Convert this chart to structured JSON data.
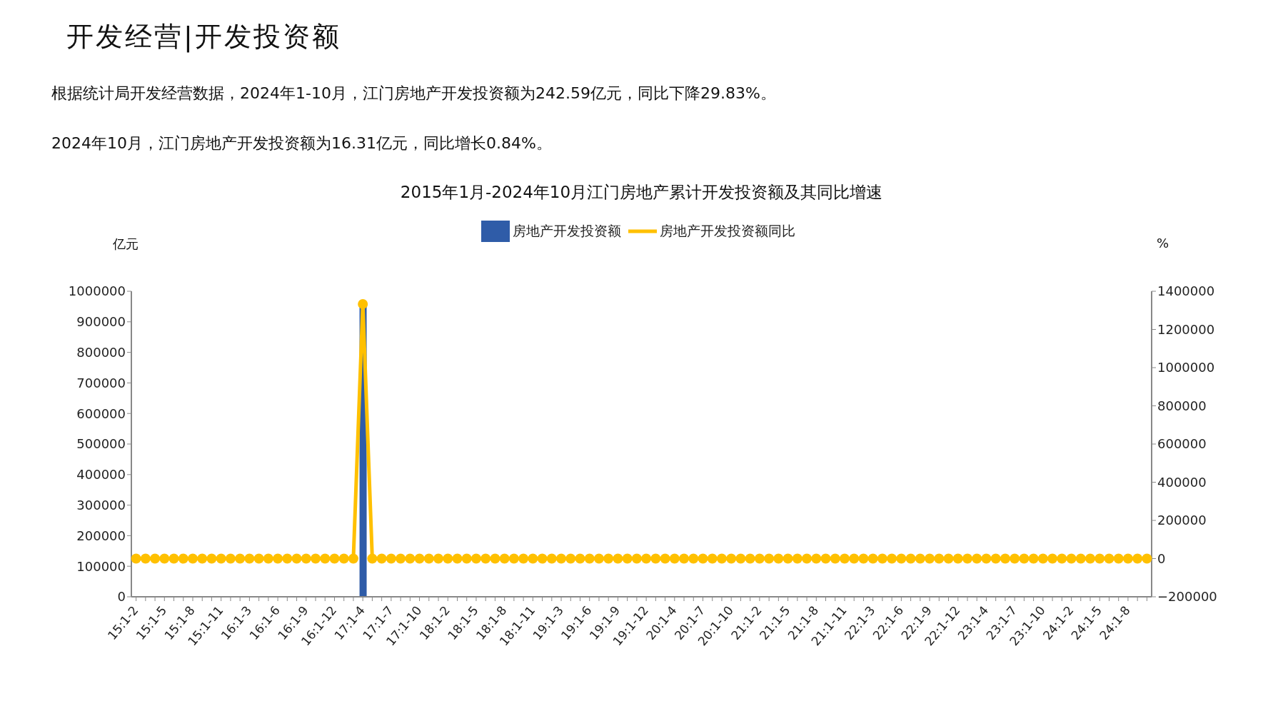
{
  "chart_data": {
    "type": "bar",
    "title": "开发经营|开发投资额",
    "subtitle": "2015年1月-2024年10月江门房地产累计开发投资额及其同比增速",
    "annotations": [
      "根据统计局开发经营数据，2024年1-10月，江门房地产开发投资额为242.59亿元，同比下降29.83%。",
      "2024年10月，江门房地产开发投资额为16.31亿元，同比增长0.84%。"
    ],
    "ylabel": "亿元",
    "y2label": "%",
    "categories": [
      "15:1-2",
      null,
      null,
      "15:1-5",
      null,
      null,
      "15:1-8",
      null,
      null,
      "15:1-11",
      null,
      null,
      "16:1-3",
      null,
      null,
      "16:1-6",
      null,
      null,
      "16:1-9",
      null,
      null,
      "16:1-12",
      null,
      null,
      "17:1-4",
      null,
      null,
      "17:1-7",
      null,
      null,
      "17:1-10",
      null,
      null,
      "18:1-2",
      null,
      null,
      "18:1-5",
      null,
      null,
      "18:1-8",
      null,
      null,
      "18:1-11",
      null,
      null,
      "19:1-3",
      null,
      null,
      "19:1-6",
      null,
      null,
      "19:1-9",
      null,
      null,
      "19:1-12",
      null,
      null,
      "20:1-4",
      null,
      null,
      "20:1-7",
      null,
      null,
      "20:1-10",
      null,
      null,
      "21:1-2",
      null,
      null,
      "21:1-5",
      null,
      null,
      "21:1-8",
      null,
      null,
      "21:1-11",
      null,
      null,
      "22:1-3",
      null,
      null,
      "22:1-6",
      null,
      null,
      "22:1-9",
      null,
      null,
      "22:1-12",
      null,
      null,
      "23:1-4",
      null,
      null,
      "23:1-7",
      null,
      null,
      "23:1-10",
      null,
      null,
      "24:1-2",
      null,
      null,
      "24:1-5",
      null,
      null,
      "24:1-8",
      null,
      null
    ],
    "series": [
      {
        "name": "房地产开发投资额",
        "color": "#2f5ca8",
        "values": [
          0,
          0,
          0,
          0,
          0,
          0,
          0,
          0,
          0,
          0,
          0,
          0,
          0,
          0,
          0,
          0,
          0,
          0,
          0,
          0,
          0,
          0,
          0,
          0,
          950000,
          0,
          0,
          0,
          0,
          0,
          0,
          0,
          0,
          0,
          0,
          0,
          0,
          0,
          0,
          0,
          0,
          0,
          0,
          0,
          0,
          0,
          0,
          0,
          0,
          0,
          0,
          0,
          0,
          0,
          0,
          0,
          0,
          0,
          0,
          0,
          0,
          0,
          0,
          0,
          0,
          0,
          0,
          0,
          0,
          0,
          0,
          0,
          0,
          0,
          0,
          0,
          0,
          0,
          0,
          0,
          0,
          0,
          0,
          0,
          0,
          0,
          0,
          0,
          0,
          0,
          0,
          0,
          0,
          0,
          0,
          0,
          0,
          0,
          0,
          0,
          0,
          0,
          0,
          0,
          0,
          0,
          0,
          0
        ]
      },
      {
        "name": "房地产开发投资额同比",
        "type": "line",
        "axis": "y2",
        "color": "#ffc000",
        "values": [
          0,
          0,
          0,
          0,
          0,
          0,
          0,
          0,
          0,
          0,
          0,
          0,
          0,
          0,
          0,
          0,
          0,
          0,
          0,
          0,
          0,
          0,
          0,
          0,
          1333000,
          0,
          0,
          0,
          0,
          0,
          0,
          0,
          0,
          0,
          0,
          0,
          0,
          0,
          0,
          0,
          0,
          0,
          0,
          0,
          0,
          0,
          0,
          0,
          0,
          0,
          0,
          0,
          0,
          0,
          0,
          0,
          0,
          0,
          0,
          0,
          0,
          0,
          0,
          0,
          0,
          0,
          0,
          0,
          0,
          0,
          0,
          0,
          0,
          0,
          0,
          0,
          0,
          0,
          0,
          0,
          0,
          0,
          0,
          0,
          0,
          0,
          0,
          0,
          0,
          0,
          0,
          0,
          0,
          0,
          0,
          0,
          0,
          0,
          0,
          0,
          0,
          0,
          0,
          0,
          0,
          0,
          0,
          0
        ]
      }
    ],
    "ylim": [
      0,
      1000000
    ],
    "yticks": [
      0,
      100000,
      200000,
      300000,
      400000,
      500000,
      600000,
      700000,
      800000,
      900000,
      1000000
    ],
    "y2lim": [
      -200000,
      1400000
    ],
    "y2ticks": [
      -200000,
      0,
      200000,
      400000,
      600000,
      800000,
      1000000,
      1200000,
      1400000
    ],
    "legend": "top",
    "grid": false,
    "marker": "circle",
    "line_style": "solid"
  }
}
